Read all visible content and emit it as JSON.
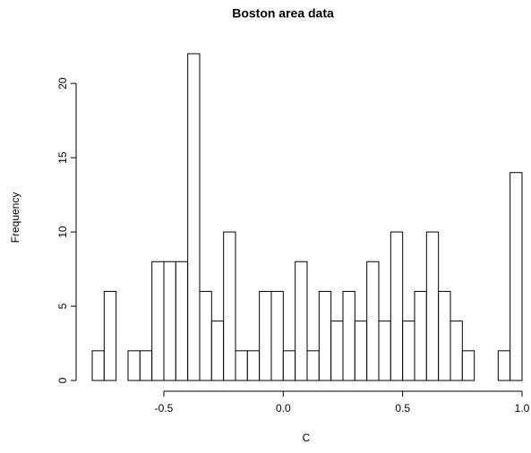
{
  "chart_data": {
    "type": "histogram",
    "title": "Boston area data",
    "x_label": "C",
    "y_label": "Frequency",
    "bins": [
      -0.8,
      -0.75,
      -0.7,
      -0.65,
      -0.6,
      -0.55,
      -0.5,
      -0.45,
      -0.4,
      -0.35,
      -0.3,
      -0.25,
      -0.2,
      -0.15,
      -0.1,
      -0.05,
      0,
      0.05,
      0.1,
      0.15,
      0.2,
      0.25,
      0.3,
      0.35,
      0.4,
      0.45,
      0.5,
      0.55,
      0.6,
      0.65,
      0.7,
      0.75,
      0.8,
      0.85,
      0.9,
      0.95,
      1.0
    ],
    "values": [
      2,
      6,
      0,
      2,
      2,
      8,
      8,
      8,
      22,
      6,
      4,
      10,
      2,
      2,
      6,
      6,
      2,
      8,
      2,
      6,
      4,
      6,
      4,
      8,
      4,
      10,
      4,
      6,
      10,
      6,
      4,
      2,
      0,
      0,
      2,
      14
    ],
    "color": "#ffffff",
    "xlim": [
      -0.8,
      1.0
    ],
    "xticks": [
      -0.5,
      {
        "value": 0,
        "label": "0.0"
      },
      0.5,
      {
        "value": 1,
        "label": "1.0"
      }
    ],
    "ylim": [
      0,
      22
    ],
    "yticks": [
      0,
      5,
      10,
      15,
      20
    ]
  }
}
